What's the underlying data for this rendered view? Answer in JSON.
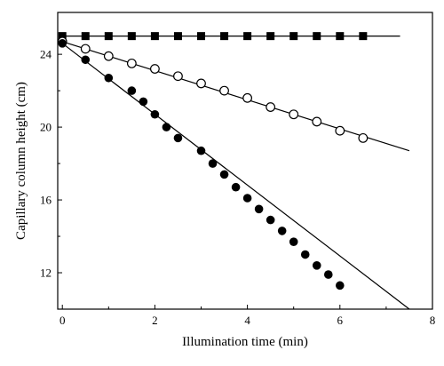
{
  "chart_data": {
    "type": "scatter",
    "title": "",
    "xlabel": "Illumination time (min)",
    "ylabel": "Capillary column height (cm)",
    "xlim": [
      -0.1,
      8
    ],
    "ylim": [
      10.0,
      26.3
    ],
    "xticks": [
      0,
      2,
      4,
      6,
      8
    ],
    "yticks": [
      12,
      16,
      20,
      24
    ],
    "grid": false,
    "legend": "none",
    "series": [
      {
        "marker": "filled-square",
        "color": "#000000",
        "points": [
          [
            0,
            25.0
          ],
          [
            0.5,
            25.0
          ],
          [
            1,
            25.0
          ],
          [
            1.5,
            25.0
          ],
          [
            2,
            25.0
          ],
          [
            2.5,
            25.0
          ],
          [
            3,
            25.0
          ],
          [
            3.5,
            25.0
          ],
          [
            4,
            25.0
          ],
          [
            4.5,
            25.0
          ],
          [
            5,
            25.0
          ],
          [
            5.5,
            25.0
          ],
          [
            6,
            25.0
          ],
          [
            6.5,
            25.0
          ]
        ],
        "fit_line": [
          [
            0,
            25.0
          ],
          [
            7.3,
            25.0
          ]
        ]
      },
      {
        "marker": "open-circle",
        "color": "#000000",
        "points": [
          [
            0,
            24.7
          ],
          [
            0.5,
            24.3
          ],
          [
            1,
            23.9
          ],
          [
            1.5,
            23.5
          ],
          [
            2,
            23.2
          ],
          [
            2.5,
            22.8
          ],
          [
            3,
            22.4
          ],
          [
            3.5,
            22.0
          ],
          [
            4,
            21.6
          ],
          [
            4.5,
            21.1
          ],
          [
            5,
            20.7
          ],
          [
            5.5,
            20.3
          ],
          [
            6,
            19.8
          ],
          [
            6.5,
            19.4
          ]
        ],
        "fit_line": [
          [
            0,
            24.7
          ],
          [
            7.5,
            18.7
          ]
        ]
      },
      {
        "marker": "filled-circle",
        "color": "#000000",
        "points": [
          [
            0,
            24.6
          ],
          [
            0.5,
            23.7
          ],
          [
            1,
            22.7
          ],
          [
            1.5,
            22.0
          ],
          [
            1.75,
            21.4
          ],
          [
            2,
            20.7
          ],
          [
            2.25,
            20.0
          ],
          [
            2.5,
            19.4
          ],
          [
            3,
            18.7
          ],
          [
            3.25,
            18.0
          ],
          [
            3.5,
            17.4
          ],
          [
            3.75,
            16.7
          ],
          [
            4,
            16.1
          ],
          [
            4.25,
            15.5
          ],
          [
            4.5,
            14.9
          ],
          [
            4.75,
            14.3
          ],
          [
            5,
            13.7
          ],
          [
            5.25,
            13.0
          ],
          [
            5.5,
            12.4
          ],
          [
            5.75,
            11.9
          ],
          [
            6,
            11.3
          ]
        ],
        "fit_line": [
          [
            0,
            24.6
          ],
          [
            7.5,
            10.0
          ]
        ]
      }
    ]
  }
}
